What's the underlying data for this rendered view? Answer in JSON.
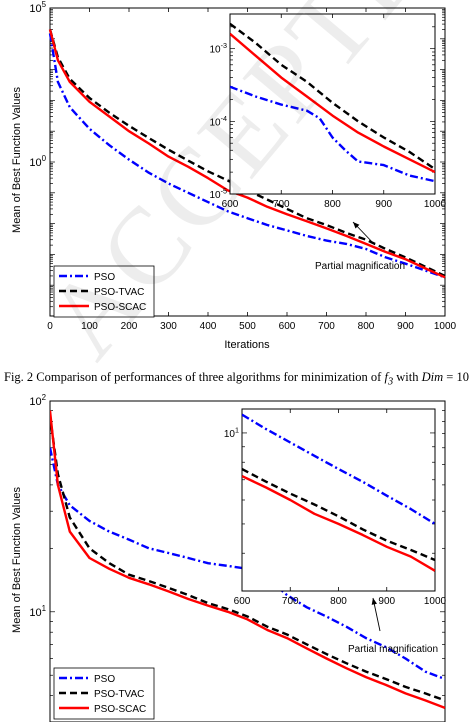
{
  "caption": {
    "prefix": "Fig. 2 Comparison of performances of three algorithms for minimization of",
    "func": "f",
    "sub": "3",
    "mid": "with",
    "dim_label": "Dim",
    "dim_value": "= 10"
  },
  "watermark": {
    "text": "ACCEPTED MANUSCRIPT"
  },
  "chart_data": [
    {
      "type": "line",
      "ylabel": "Mean of Best Function Values",
      "xlabel": "Iterations",
      "yscale": "log",
      "xlim": [
        0,
        1000
      ],
      "ylim": [
        1e-05,
        100000
      ],
      "xticks": [
        "0",
        "100",
        "200",
        "300",
        "400",
        "500",
        "600",
        "700",
        "800",
        "900",
        "1000"
      ],
      "yticks": [
        {
          "base": "10",
          "exp": "5",
          "value": 100000
        },
        {
          "base": "10",
          "exp": "0",
          "value": 1
        }
      ],
      "legend_position": "bottom-left",
      "legend": [
        "PSO",
        "PSO-TVAC",
        "PSO-SCAC"
      ],
      "annotation": "Partial magnification",
      "series": [
        {
          "name": "PSO",
          "color": "#0000ff",
          "dash": "dashdot",
          "x": [
            0,
            20,
            50,
            100,
            150,
            200,
            250,
            300,
            350,
            400,
            450,
            500,
            550,
            600,
            650,
            700,
            750,
            800,
            850,
            900,
            950,
            1000
          ],
          "y": [
            15000,
            400,
            60,
            12,
            3.5,
            1.2,
            0.45,
            0.2,
            0.1,
            0.05,
            0.025,
            0.015,
            0.009,
            0.006,
            0.004,
            0.0028,
            0.0022,
            0.0015,
            0.0008,
            0.0005,
            0.0003,
            0.00018
          ]
        },
        {
          "name": "PSO-TVAC",
          "color": "#000000",
          "dash": "dashed",
          "x": [
            0,
            20,
            50,
            100,
            150,
            200,
            250,
            300,
            350,
            400,
            450,
            500,
            550,
            600,
            650,
            700,
            750,
            800,
            850,
            900,
            950,
            1000
          ],
          "y": [
            20000,
            2500,
            500,
            120,
            40,
            15,
            6,
            2.5,
            1.1,
            0.5,
            0.25,
            0.12,
            0.06,
            0.03,
            0.015,
            0.009,
            0.005,
            0.003,
            0.0015,
            0.0008,
            0.0004,
            0.0002
          ]
        },
        {
          "name": "PSO-SCAC",
          "color": "#ff0000",
          "dash": "solid",
          "x": [
            0,
            20,
            50,
            100,
            150,
            200,
            250,
            300,
            350,
            400,
            450,
            500,
            550,
            600,
            650,
            700,
            750,
            800,
            850,
            900,
            950,
            1000
          ],
          "y": [
            20000,
            2000,
            400,
            90,
            30,
            10,
            4,
            1.5,
            0.7,
            0.3,
            0.12,
            0.07,
            0.035,
            0.02,
            0.012,
            0.007,
            0.004,
            0.0022,
            0.0012,
            0.0007,
            0.00035,
            0.00018
          ]
        }
      ],
      "inset": {
        "xlim": [
          600,
          1000
        ],
        "ylim": [
          1e-05,
          0.003
        ],
        "xticks": [
          "600",
          "700",
          "800",
          "900",
          "1000"
        ],
        "yticks": [
          {
            "base": "10",
            "exp": "-3",
            "value": 0.001
          },
          {
            "base": "10",
            "exp": "-4",
            "value": 0.0001
          },
          {
            "base": "10",
            "exp": "-5",
            "value": 1e-05
          }
        ],
        "series": [
          {
            "name": "PSO",
            "x": [
              600,
              650,
              700,
              750,
              775,
              800,
              825,
              850,
              900,
              950,
              1000
            ],
            "y": [
              0.0003,
              0.00022,
              0.00017,
              0.00014,
              0.00011,
              6e-05,
              4e-05,
              2.8e-05,
              2.5e-05,
              1.8e-05,
              1.5e-05
            ]
          },
          {
            "name": "PSO-TVAC",
            "x": [
              600,
              650,
              700,
              750,
              800,
              850,
              900,
              950,
              1000
            ],
            "y": [
              0.0022,
              0.0012,
              0.0006,
              0.00035,
              0.00018,
              0.0001,
              6e-05,
              3.8e-05,
              2.2e-05
            ]
          },
          {
            "name": "PSO-SCAC",
            "x": [
              600,
              650,
              700,
              750,
              800,
              850,
              900,
              950,
              1000
            ],
            "y": [
              0.0016,
              0.0008,
              0.0004,
              0.00022,
              0.00012,
              7e-05,
              4.5e-05,
              3e-05,
              2e-05
            ]
          }
        ]
      }
    },
    {
      "type": "line",
      "ylabel": "Mean of Best Function Values",
      "xlabel": "",
      "yscale": "log",
      "xlim": [
        0,
        1000
      ],
      "ylim": [
        3,
        100
      ],
      "xticks": [],
      "yticks": [
        {
          "base": "10",
          "exp": "2",
          "value": 100
        },
        {
          "base": "10",
          "exp": "1",
          "value": 10
        }
      ],
      "legend_position": "bottom-left",
      "legend": [
        "PSO",
        "PSO-TVAC",
        "PSO-SCAC"
      ],
      "annotation": "Partial magnification",
      "series": [
        {
          "name": "PSO",
          "color": "#0000ff",
          "dash": "dashdot",
          "x": [
            0,
            20,
            50,
            100,
            150,
            200,
            250,
            300,
            350,
            400,
            450,
            500,
            550,
            600,
            650,
            700,
            750,
            800,
            850,
            900,
            950,
            1000
          ],
          "y": [
            60,
            40,
            32,
            27,
            24,
            22,
            20,
            19,
            18,
            17,
            16.5,
            16,
            14.5,
            12,
            10.5,
            9.5,
            8.5,
            7.5,
            6.8,
            6,
            5.2,
            4.8
          ]
        },
        {
          "name": "PSO-TVAC",
          "color": "#000000",
          "dash": "dashed",
          "x": [
            0,
            20,
            50,
            100,
            150,
            200,
            250,
            300,
            350,
            400,
            450,
            500,
            550,
            600,
            650,
            700,
            750,
            800,
            850,
            900,
            950,
            1000
          ],
          "y": [
            85,
            45,
            28,
            20,
            17,
            15,
            14,
            13,
            12,
            11,
            10.3,
            9.5,
            8.5,
            7.8,
            7,
            6.3,
            5.7,
            5.2,
            4.8,
            4.4,
            4.1,
            3.8
          ]
        },
        {
          "name": "PSO-SCAC",
          "color": "#ff0000",
          "dash": "solid",
          "x": [
            0,
            20,
            50,
            100,
            150,
            200,
            250,
            300,
            350,
            400,
            450,
            500,
            550,
            600,
            650,
            700,
            750,
            800,
            850,
            900,
            950,
            1000
          ],
          "y": [
            90,
            40,
            24,
            18,
            16,
            14.5,
            13.5,
            12.5,
            11.5,
            10.7,
            10,
            9.2,
            8.2,
            7.5,
            6.7,
            6,
            5.4,
            4.9,
            4.5,
            4.1,
            3.8,
            3.5
          ]
        }
      ],
      "inset": {
        "xlim": [
          600,
          1000
        ],
        "ylim": [
          3,
          12
        ],
        "xticks": [
          "600",
          "700",
          "800",
          "900",
          "1000"
        ],
        "yticks": [
          {
            "base": "10",
            "exp": "1",
            "value": 10
          }
        ],
        "series": [
          {
            "name": "PSO",
            "x": [
              600,
              650,
              700,
              750,
              800,
              850,
              900,
              950,
              1000
            ],
            "y": [
              11.5,
              10.3,
              9.3,
              8.4,
              7.6,
              6.9,
              6.2,
              5.6,
              5
            ]
          },
          {
            "name": "PSO-TVAC",
            "x": [
              600,
              650,
              700,
              750,
              800,
              850,
              900,
              950,
              1000
            ],
            "y": [
              7.6,
              6.9,
              6.3,
              5.8,
              5.3,
              4.8,
              4.4,
              4.1,
              3.8
            ]
          },
          {
            "name": "PSO-SCAC",
            "x": [
              600,
              650,
              700,
              750,
              800,
              850,
              900,
              950,
              1000
            ],
            "y": [
              7.2,
              6.6,
              6,
              5.4,
              5,
              4.6,
              4.2,
              3.9,
              3.5
            ]
          }
        ]
      }
    }
  ]
}
